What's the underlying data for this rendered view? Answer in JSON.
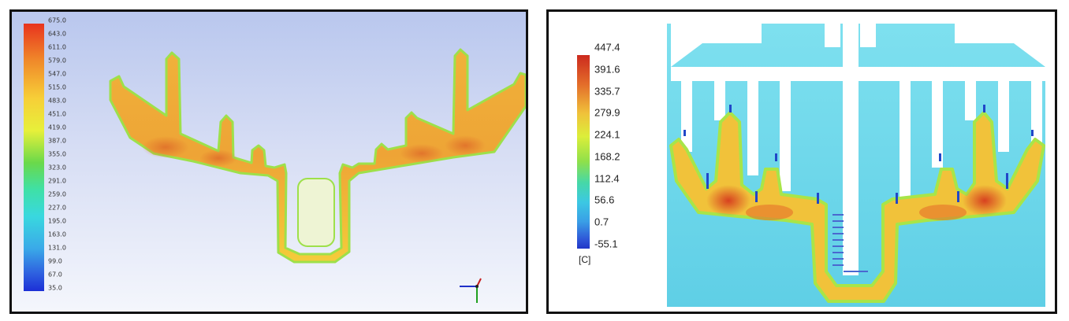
{
  "left_panel": {
    "scale_values": [
      "675.0",
      "643.0",
      "611.0",
      "579.0",
      "547.0",
      "515.0",
      "483.0",
      "451.0",
      "419.0",
      "387.0",
      "355.0",
      "323.0",
      "291.0",
      "259.0",
      "227.0",
      "195.0",
      "163.0",
      "131.0",
      "99.0",
      "67.0",
      "35.0"
    ]
  },
  "right_panel": {
    "scale_values": [
      "447.4",
      "391.6",
      "335.7",
      "279.9",
      "224.1",
      "168.2",
      "112.4",
      "56.6",
      "0.7",
      "-55.1"
    ],
    "unit": "[C]"
  },
  "colors": {
    "hot": "#d63a1e",
    "warm": "#eea436",
    "mid": "#f4d23e",
    "cool_background": "#6fd9ea",
    "cold": "#2147c8"
  }
}
